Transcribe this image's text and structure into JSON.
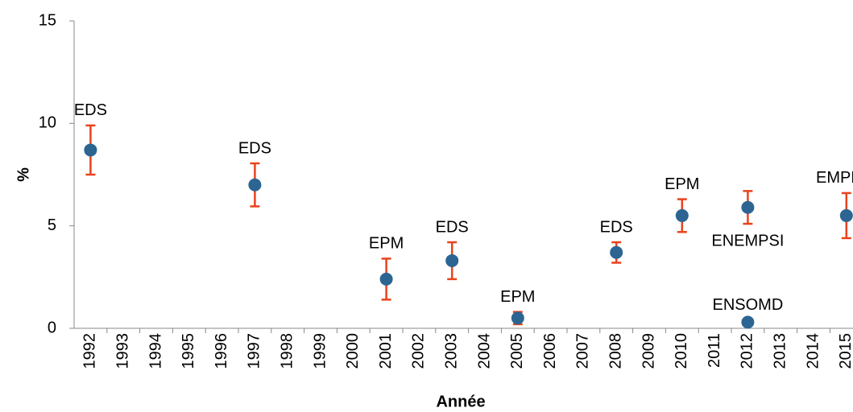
{
  "chart_data": {
    "type": "scatter",
    "x_label": "Année",
    "y_label": "%",
    "categories": [
      "1992",
      "1993",
      "1994",
      "1995",
      "1996",
      "1997",
      "1998",
      "1999",
      "2000",
      "2001",
      "2002",
      "2003",
      "2004",
      "2005",
      "2006",
      "2007",
      "2008",
      "2009",
      "2010",
      "2011",
      "2012",
      "2013",
      "2014",
      "2015"
    ],
    "ylim": [
      0,
      15
    ],
    "yticks": [
      0,
      5,
      10,
      15
    ],
    "error_color": "#e8431c",
    "series": [
      {
        "color": "#2c6591",
        "values": [
          8.7,
          null,
          null,
          null,
          null,
          7.0,
          null,
          null,
          null,
          2.4,
          null,
          3.3,
          null,
          0.5,
          null,
          null,
          3.7,
          null,
          5.5,
          null,
          5.9,
          null,
          null,
          5.5
        ],
        "errors": [
          1.2,
          null,
          null,
          null,
          null,
          1.05,
          null,
          null,
          null,
          1.0,
          null,
          0.9,
          null,
          0.3,
          null,
          null,
          0.5,
          null,
          0.8,
          null,
          0.8,
          null,
          null,
          1.1
        ],
        "point_labels": [
          "EDS",
          null,
          null,
          null,
          null,
          "EDS",
          null,
          null,
          null,
          "EPM",
          null,
          "EDS",
          null,
          "EPM",
          null,
          null,
          "EDS",
          null,
          "EPM",
          null,
          "ENEMPSI",
          null,
          null,
          "EMPLOI"
        ],
        "label_positions": [
          "above",
          null,
          null,
          null,
          null,
          "above",
          null,
          null,
          null,
          "above",
          null,
          "above",
          null,
          "above",
          null,
          null,
          "above",
          null,
          "above",
          null,
          "below",
          null,
          null,
          "above"
        ]
      },
      {
        "color": "#2c6591",
        "values": [
          null,
          null,
          null,
          null,
          null,
          null,
          null,
          null,
          null,
          null,
          null,
          null,
          null,
          null,
          null,
          null,
          null,
          null,
          null,
          null,
          0.3,
          null,
          null,
          null
        ],
        "errors": [
          null,
          null,
          null,
          null,
          null,
          null,
          null,
          null,
          null,
          null,
          null,
          null,
          null,
          null,
          null,
          null,
          null,
          null,
          null,
          null,
          0.1,
          null,
          null,
          null
        ],
        "point_labels": [
          null,
          null,
          null,
          null,
          null,
          null,
          null,
          null,
          null,
          null,
          null,
          null,
          null,
          null,
          null,
          null,
          null,
          null,
          null,
          null,
          "ENSOMD",
          null,
          null,
          null
        ],
        "label_positions": [
          null,
          null,
          null,
          null,
          null,
          null,
          null,
          null,
          null,
          null,
          null,
          null,
          null,
          null,
          null,
          null,
          null,
          null,
          null,
          null,
          "above",
          null,
          null,
          null
        ]
      }
    ]
  }
}
